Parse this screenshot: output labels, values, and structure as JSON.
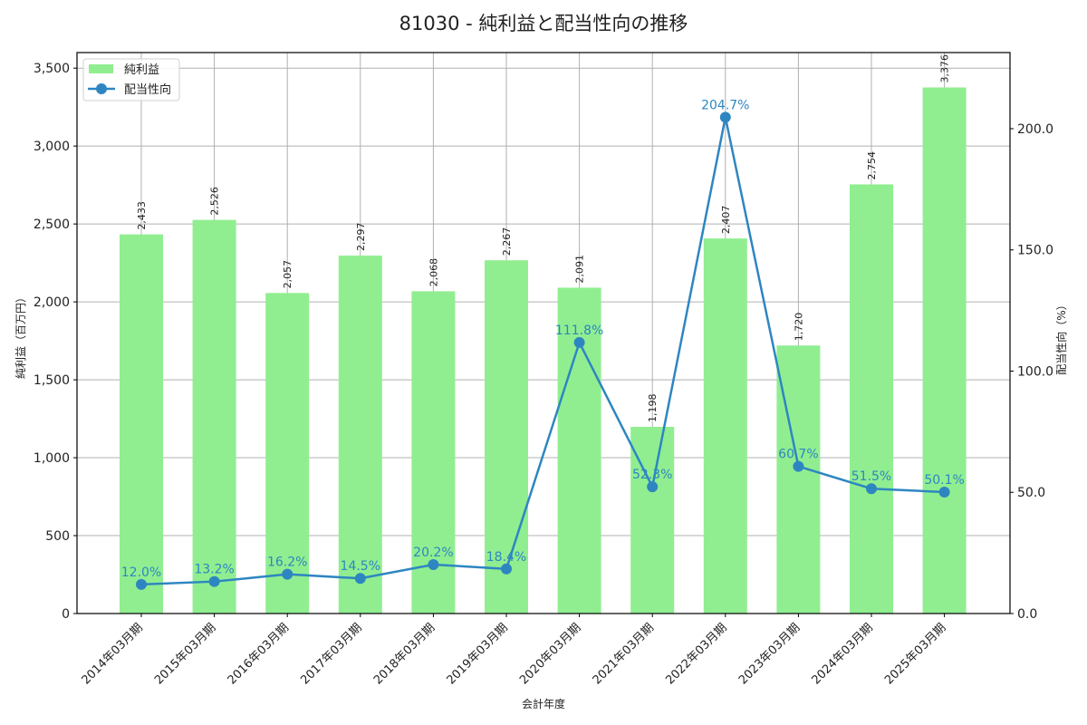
{
  "chart_data": {
    "type": "bar",
    "title": "81030 - 純利益と配当性向の推移",
    "xlabel": "会計年度",
    "ylabel": "純利益（百万円）",
    "y2label": "配当性向（%）",
    "categories": [
      "2014年03月期",
      "2015年03月期",
      "2016年03月期",
      "2017年03月期",
      "2018年03月期",
      "2019年03月期",
      "2020年03月期",
      "2021年03月期",
      "2022年03月期",
      "2023年03月期",
      "2024年03月期",
      "2025年03月期"
    ],
    "series": [
      {
        "name": "純利益",
        "type": "bar",
        "axis": "left",
        "color": "#90ee90",
        "values": [
          2433,
          2526,
          2057,
          2297,
          2068,
          2267,
          2091,
          1198,
          2407,
          1720,
          2754,
          3376
        ],
        "labels": [
          "2,433",
          "2,526",
          "2,057",
          "2,297",
          "2,068",
          "2,267",
          "2,091",
          "1,198",
          "2,407",
          "1,720",
          "2,754",
          "3,376"
        ]
      },
      {
        "name": "配当性向",
        "type": "line",
        "axis": "right",
        "color": "#2e86c1",
        "values": [
          12.0,
          13.2,
          16.2,
          14.5,
          20.2,
          18.4,
          111.8,
          52.3,
          204.7,
          60.7,
          51.5,
          50.1
        ],
        "labels": [
          "12.0%",
          "13.2%",
          "16.2%",
          "14.5%",
          "20.2%",
          "18.4%",
          "111.8%",
          "52.3%",
          "204.7%",
          "60.7%",
          "51.5%",
          "50.1%"
        ]
      }
    ],
    "ylim": [
      0,
      3600
    ],
    "y2lim": [
      0,
      231.4
    ],
    "yticks": [
      0,
      500,
      1000,
      1500,
      2000,
      2500,
      3000,
      3500
    ],
    "ytick_labels": [
      "0",
      "500",
      "1,000",
      "1,500",
      "2,000",
      "2,500",
      "3,000",
      "3,500"
    ],
    "y2ticks": [
      0,
      50,
      100,
      150,
      200
    ],
    "y2tick_labels": [
      "0.0",
      "50.0",
      "100.0",
      "150.0",
      "200.0"
    ],
    "grid": true,
    "legend_position": "upper left"
  }
}
